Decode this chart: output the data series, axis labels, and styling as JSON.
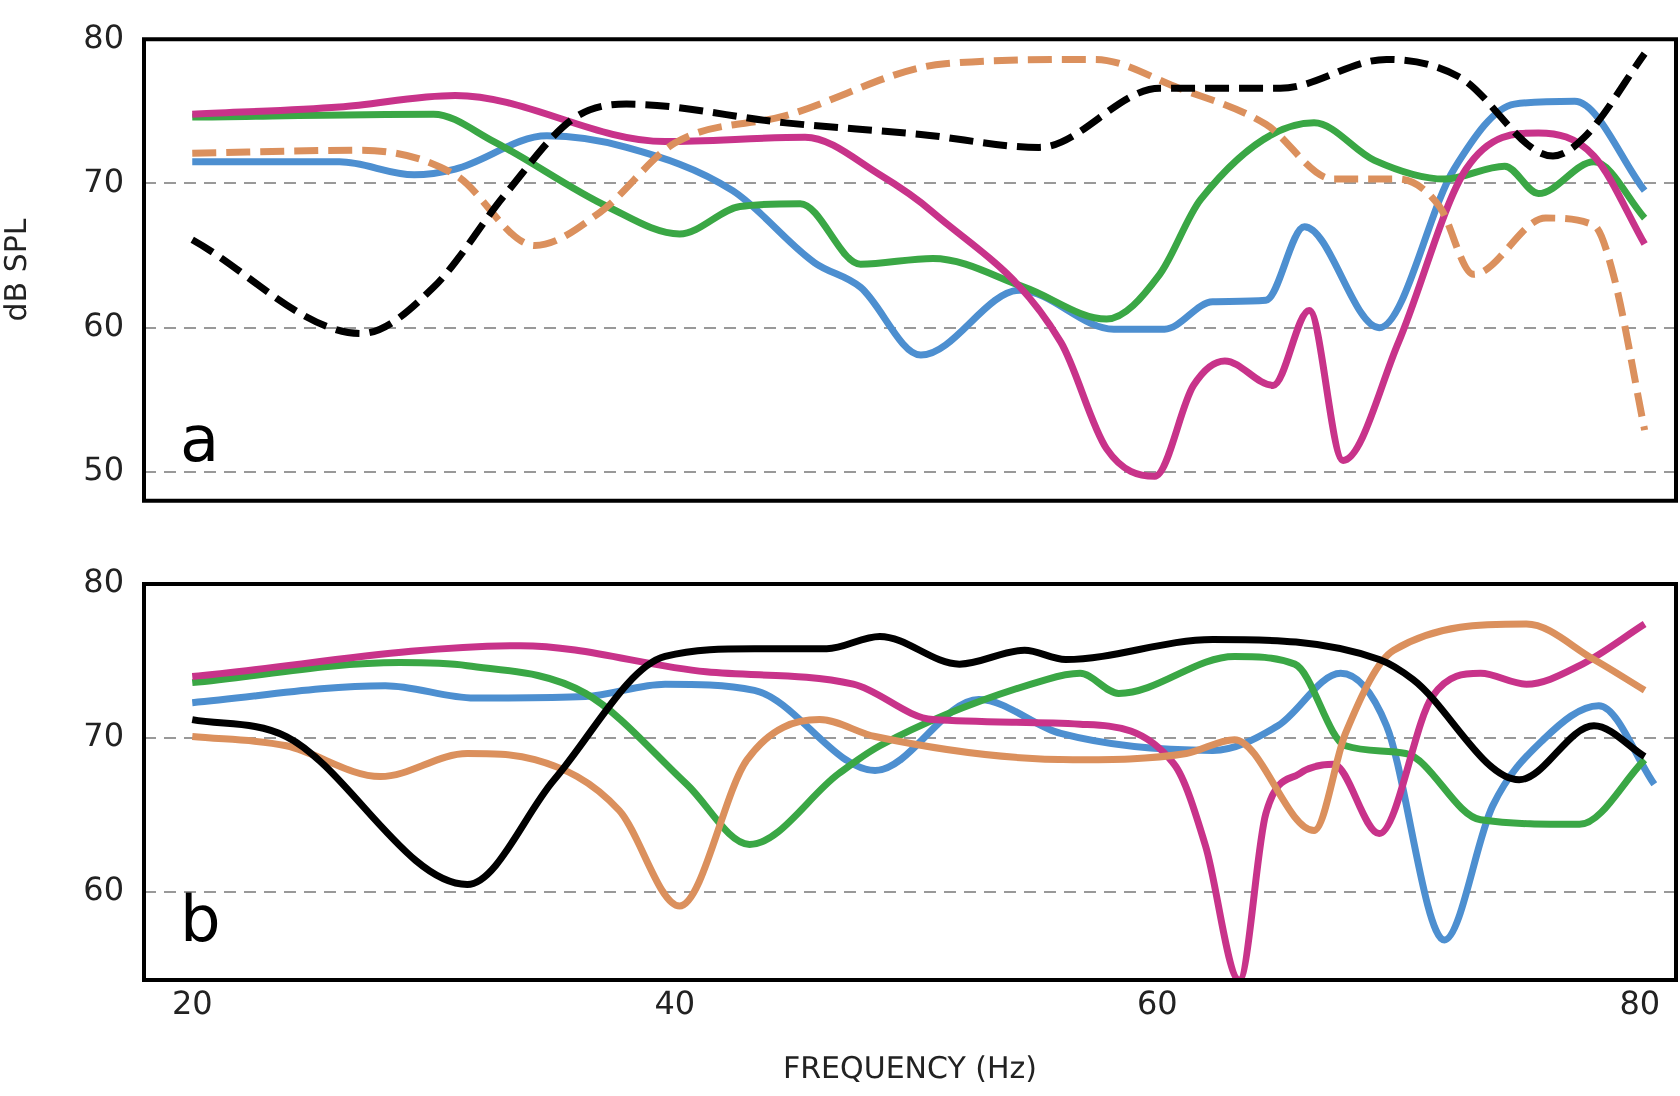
{
  "chart_data": [
    {
      "type": "line",
      "ylabel": "dB SPL",
      "annotations": [
        "a"
      ],
      "xlim": [
        18,
        81.5
      ],
      "xticks": [
        20,
        40,
        60,
        80
      ],
      "ylim": [
        48,
        80
      ],
      "yticks": [
        50,
        60,
        70,
        80
      ],
      "grid": "y",
      "legend": false,
      "tick_labels": "y",
      "marker": "none",
      "series": [
        {
          "color": "#000000",
          "line_style": "dashed",
          "x": [
            20,
            27,
            30,
            33,
            35.8,
            38,
            44.6,
            50.2,
            55.1,
            60.1,
            65.1,
            69.5,
            72.5,
            76.4,
            77.7,
            80.2
          ],
          "values": [
            66.1,
            59.6,
            62.8,
            69.3,
            74.5,
            75.5,
            74.2,
            73.4,
            72.5,
            76.6,
            76.6,
            78.6,
            77.4,
            71.9,
            73.2,
            79
          ]
        },
        {
          "color": "#db905d",
          "line_style": "dashed",
          "x": [
            20,
            27,
            30.9,
            34.2,
            36.9,
            40,
            44.6,
            51.2,
            57.4,
            60.9,
            64.5,
            67.3,
            70,
            71.7,
            73.1,
            76.1,
            78.1,
            78.9,
            80.2
          ],
          "values": [
            72.1,
            72.3,
            70.6,
            65.7,
            68,
            72.8,
            74.7,
            78.3,
            78.6,
            76.6,
            74.1,
            70.3,
            70.3,
            68.4,
            63.7,
            67.6,
            67.1,
            63.7,
            52.9
          ]
        },
        {
          "color": "#c8338a",
          "line_style": "solid",
          "x": [
            20,
            26.1,
            30.9,
            39.6,
            45.4,
            48.5,
            50.7,
            56,
            57.9,
            59.9,
            61.5,
            62.8,
            64.8,
            66.3,
            67.7,
            70,
            72.8,
            75.8,
            78.1,
            80.2
          ],
          "values": [
            74.8,
            75.3,
            76.1,
            72.9,
            73.2,
            70.6,
            68,
            59,
            51.6,
            49.7,
            56,
            57.7,
            56,
            61.2,
            50.8,
            59,
            71,
            73.5,
            71.9,
            65.8
          ]
        },
        {
          "color": "#3aa745",
          "line_style": "solid",
          "x": [
            20,
            30,
            32.5,
            37.2,
            40.2,
            42.7,
            45.2,
            47.7,
            50.7,
            54.5,
            57.9,
            60.1,
            61.8,
            66.5,
            69,
            71.9,
            74.4,
            75.8,
            78.1,
            80.2
          ],
          "values": [
            74.6,
            74.8,
            72.9,
            68.4,
            66.5,
            68.4,
            68.6,
            64.4,
            64.8,
            62.8,
            60.6,
            63.7,
            68.9,
            74.2,
            71.6,
            70.3,
            71.2,
            69.3,
            71.5,
            67.6
          ]
        },
        {
          "color": "#4d8fd0",
          "line_style": "solid",
          "x": [
            20,
            26.1,
            29.2,
            30.9,
            34.7,
            38,
            42.4,
            45.8,
            47.7,
            50.2,
            54.3,
            58.2,
            60.3,
            62.3,
            64.5,
            66.1,
            69.2,
            72.3,
            74.8,
            77.3,
            80.2
          ],
          "values": [
            71.5,
            71.5,
            70.6,
            71,
            73.3,
            72.5,
            69.5,
            64.5,
            62.8,
            58.1,
            62.6,
            59.9,
            59.9,
            61.8,
            61.9,
            67,
            60,
            71,
            75.5,
            75.7,
            69.5
          ]
        }
      ]
    },
    {
      "type": "line",
      "xlabel": "FREQUENCY (Hz)",
      "annotations": [
        "b"
      ],
      "xlim": [
        18,
        81.5
      ],
      "xticks": [
        20,
        40,
        60,
        80
      ],
      "ylim": [
        54.3,
        80
      ],
      "yticks": [
        60,
        70,
        80
      ],
      "grid": "y",
      "legend": false,
      "marker": "none",
      "line_style": "solid",
      "series": [
        {
          "color": "#000000",
          "x": [
            20,
            23.9,
            31.4,
            35,
            39.6,
            43.3,
            46.3,
            48.5,
            51.8,
            54.5,
            56.2,
            62.3,
            69.2,
            70.6,
            75,
            78.1,
            80.2
          ],
          "values": [
            71.2,
            70.1,
            60.5,
            67.3,
            75.3,
            75.8,
            75.8,
            76.6,
            74.8,
            75.7,
            75.1,
            76.4,
            75.1,
            73.8,
            67.3,
            70.8,
            68.8
          ]
        },
        {
          "color": "#db905d",
          "x": [
            20,
            23.9,
            27.8,
            31.4,
            34.2,
            37.7,
            40.2,
            43,
            46,
            48.3,
            56.5,
            61.2,
            63.2,
            66.5,
            67.8,
            69.8,
            75.3,
            78.1,
            80.2
          ],
          "values": [
            70.1,
            69.5,
            67.5,
            69,
            68.6,
            65.3,
            59.1,
            68.6,
            71.2,
            70.1,
            68.6,
            69,
            69.9,
            64,
            70.3,
            75.7,
            77.4,
            75.1,
            73.1
          ]
        },
        {
          "color": "#c8338a",
          "x": [
            20,
            33.6,
            41.3,
            47.4,
            50.7,
            56.8,
            60.7,
            62,
            63.4,
            64.5,
            65.9,
            67.3,
            69.2,
            71.4,
            73.4,
            75.3,
            77.5,
            80.2
          ],
          "values": [
            74,
            76,
            74.3,
            73.5,
            71.2,
            70.9,
            68.3,
            63,
            54.3,
            65.1,
            67.7,
            68.3,
            63.8,
            72.7,
            74.2,
            73.5,
            74.7,
            77.4
          ]
        },
        {
          "color": "#3aa745",
          "x": [
            20,
            28.6,
            31.4,
            36.3,
            40.5,
            43.1,
            46.8,
            48.5,
            55.4,
            56.8,
            58.4,
            63.2,
            65.7,
            67.8,
            70.3,
            73.4,
            77.5,
            80.2
          ],
          "values": [
            73.6,
            74.9,
            74.7,
            72.9,
            67,
            63.1,
            67.7,
            69.5,
            73.8,
            74.2,
            72.9,
            75.3,
            74.8,
            69.5,
            69,
            64.7,
            64.4,
            68.6
          ]
        },
        {
          "color": "#4d8fd0",
          "x": [
            20,
            28,
            31.7,
            36.3,
            39.6,
            43.3,
            48.3,
            52.6,
            56,
            62.3,
            65,
            67.6,
            69.5,
            71.9,
            73.9,
            76,
            78.3,
            80.6
          ],
          "values": [
            72.3,
            73.4,
            72.6,
            72.7,
            73.5,
            73.1,
            67.9,
            72.5,
            70.3,
            69.2,
            70.8,
            74.2,
            70.8,
            56.9,
            65.6,
            69.9,
            72.1,
            67
          ]
        }
      ]
    }
  ]
}
